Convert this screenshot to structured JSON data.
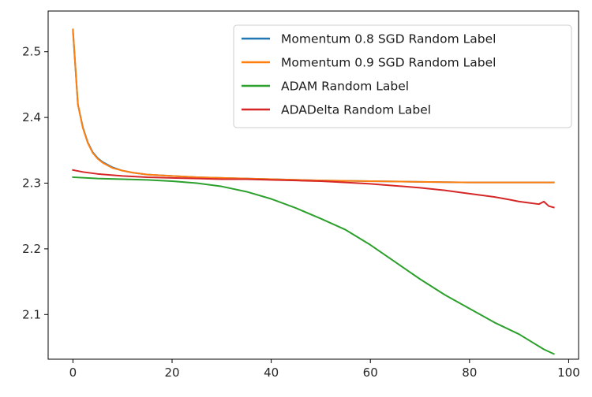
{
  "chart_data": {
    "type": "line",
    "title": "",
    "xlabel": "",
    "ylabel": "",
    "xlim": [
      -5,
      102
    ],
    "ylim": [
      2.032,
      2.562
    ],
    "xticks": [
      0,
      20,
      40,
      60,
      80,
      100
    ],
    "yticks": [
      2.1,
      2.2,
      2.3,
      2.4,
      2.5
    ],
    "grid": false,
    "legend_position": "top-right",
    "series": [
      {
        "name": "Momentum 0.8 SGD Random Label",
        "color": "#1f77b4",
        "x": [
          0,
          1,
          2,
          3,
          4,
          5,
          6,
          8,
          10,
          12,
          15,
          20,
          25,
          30,
          40,
          50,
          60,
          70,
          80,
          90,
          97
        ],
        "y": [
          2.532,
          2.42,
          2.385,
          2.362,
          2.347,
          2.338,
          2.332,
          2.324,
          2.319,
          2.316,
          2.313,
          2.311,
          2.309,
          2.308,
          2.306,
          2.304,
          2.303,
          2.302,
          2.301,
          2.301,
          2.301
        ]
      },
      {
        "name": "Momentum 0.9 SGD Random Label",
        "color": "#ff7f0e",
        "x": [
          0,
          1,
          2,
          3,
          4,
          5,
          6,
          8,
          10,
          12,
          15,
          20,
          25,
          30,
          40,
          50,
          60,
          70,
          80,
          90,
          97
        ],
        "y": [
          2.534,
          2.42,
          2.384,
          2.361,
          2.346,
          2.337,
          2.331,
          2.323,
          2.319,
          2.316,
          2.313,
          2.311,
          2.309,
          2.308,
          2.306,
          2.304,
          2.303,
          2.302,
          2.301,
          2.301,
          2.301
        ]
      },
      {
        "name": "ADAM Random Label",
        "color": "#2ca02c",
        "x": [
          0,
          5,
          10,
          15,
          20,
          25,
          30,
          35,
          40,
          45,
          50,
          55,
          60,
          65,
          70,
          75,
          80,
          85,
          90,
          95,
          97
        ],
        "y": [
          2.309,
          2.307,
          2.306,
          2.305,
          2.303,
          2.3,
          2.295,
          2.287,
          2.276,
          2.262,
          2.246,
          2.229,
          2.206,
          2.18,
          2.154,
          2.13,
          2.109,
          2.088,
          2.07,
          2.047,
          2.04
        ]
      },
      {
        "name": "ADADelta Random Label",
        "color": "#d62728",
        "x": [
          0,
          2,
          5,
          10,
          15,
          20,
          25,
          30,
          35,
          40,
          45,
          50,
          55,
          60,
          65,
          70,
          75,
          80,
          85,
          88,
          90,
          92,
          94,
          95,
          96,
          97
        ],
        "y": [
          2.32,
          2.317,
          2.314,
          2.311,
          2.309,
          2.308,
          2.307,
          2.306,
          2.306,
          2.305,
          2.304,
          2.303,
          2.301,
          2.299,
          2.296,
          2.293,
          2.289,
          2.284,
          2.279,
          2.275,
          2.272,
          2.27,
          2.268,
          2.272,
          2.265,
          2.263
        ]
      }
    ]
  }
}
